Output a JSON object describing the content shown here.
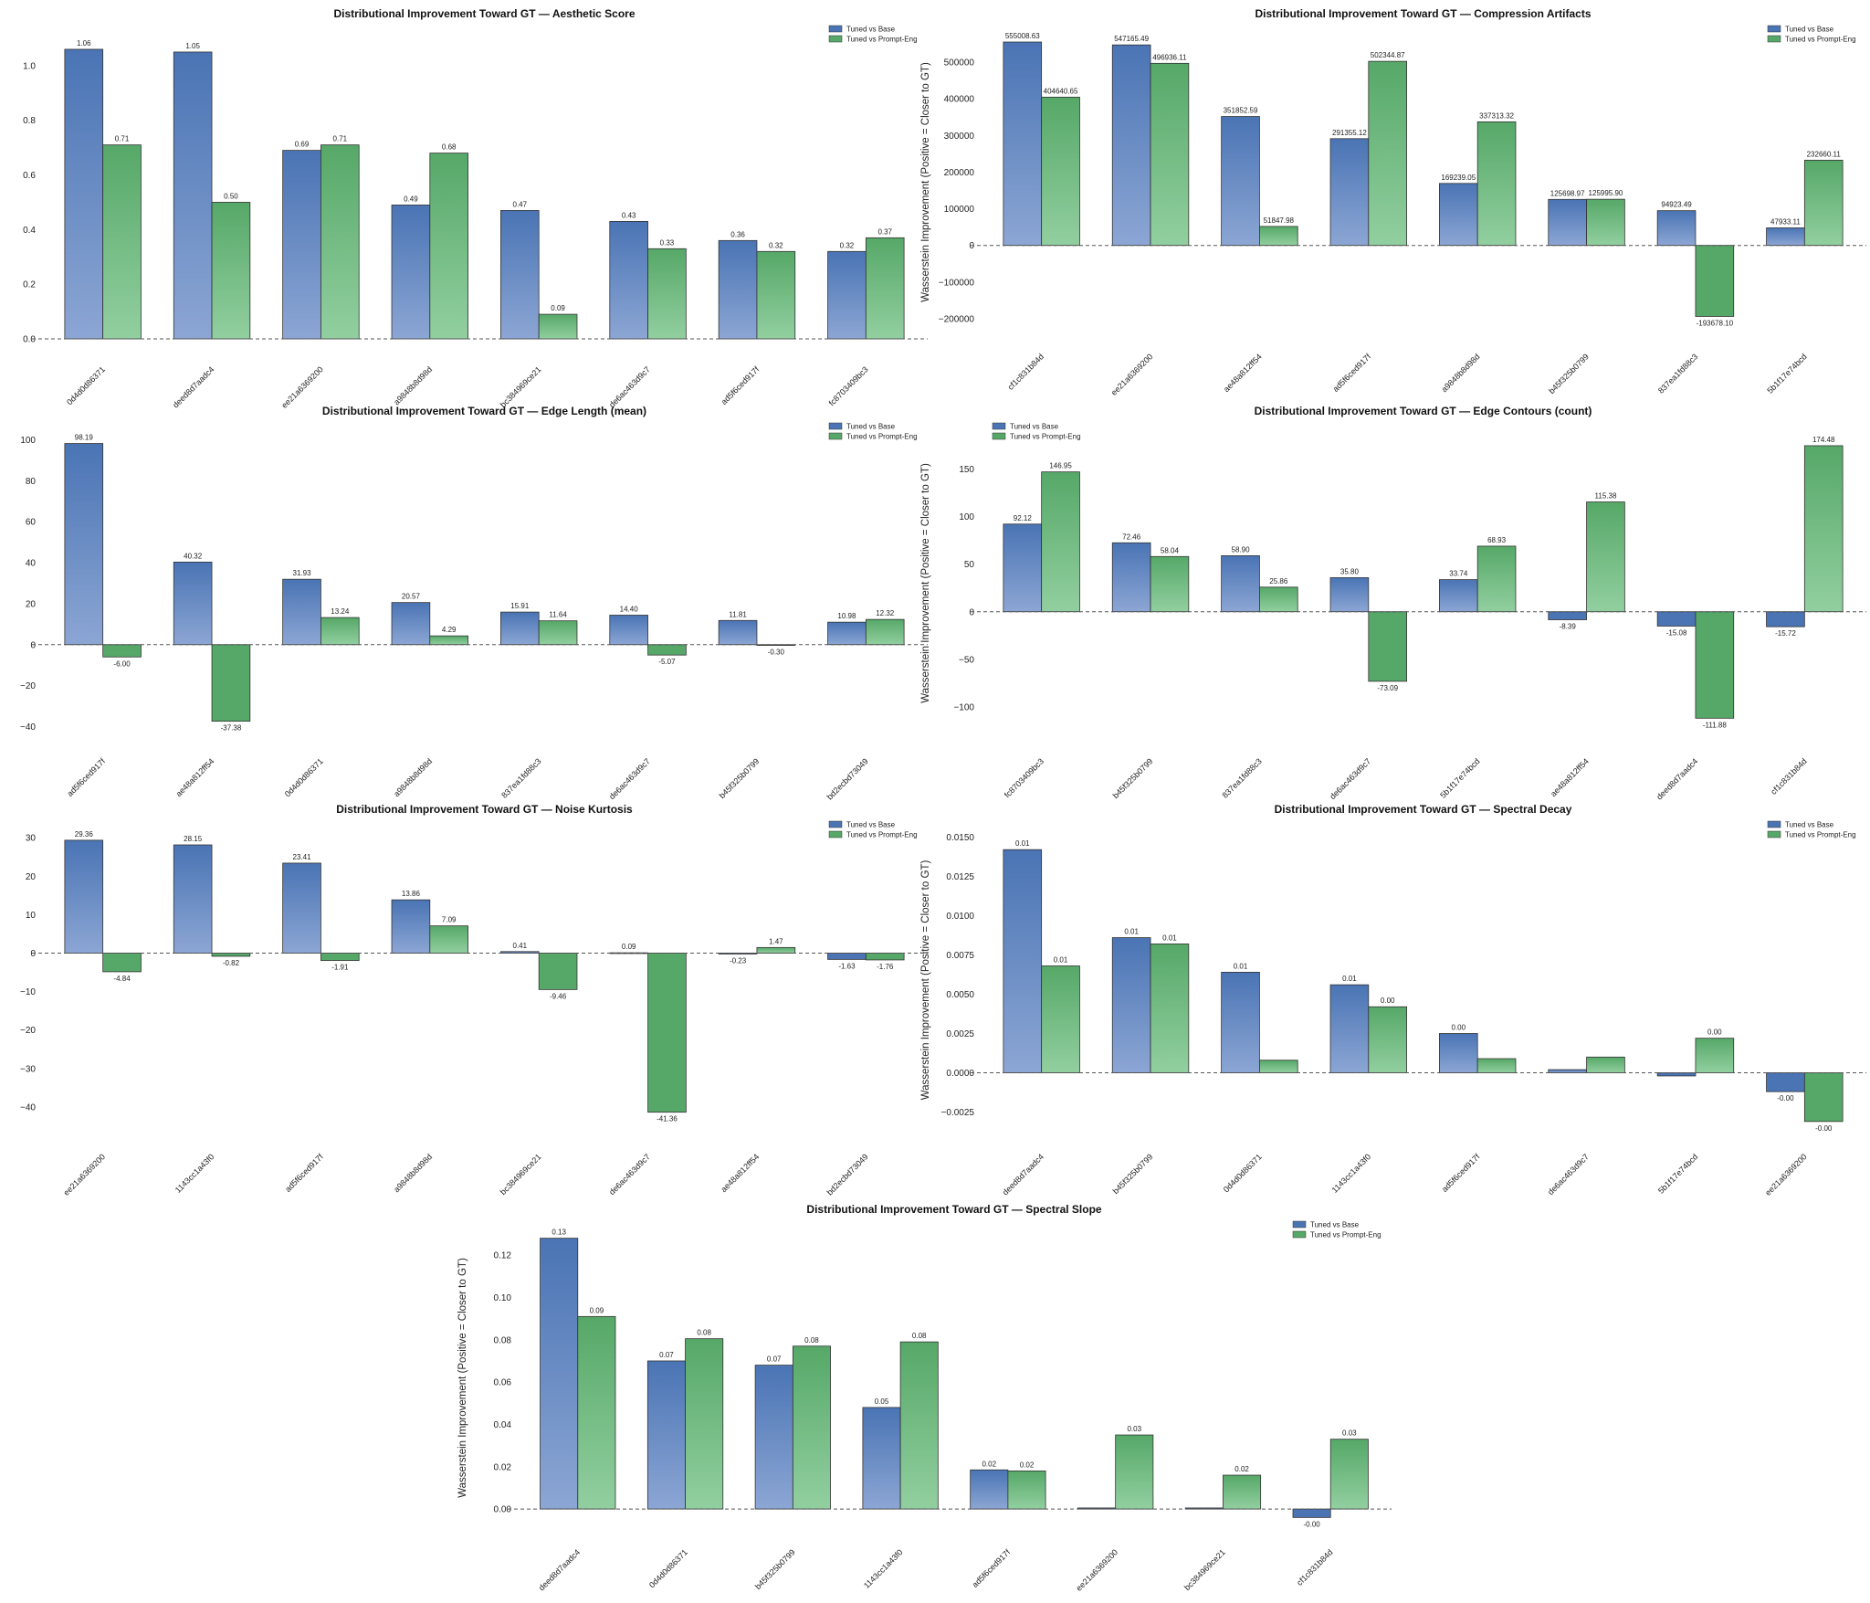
{
  "colors": {
    "tuned_vs_base": "#4a74b4",
    "tuned_vs_prompt_eng": "#56a868",
    "zero_line": "#555555"
  },
  "chart_data": [
    {
      "type": "bar",
      "title": "Distributional Improvement Toward GT — Aesthetic Score",
      "ylabel": "Wasserstein Improvement (Positive = Closer to GT)",
      "ylim": [
        0,
        1.1
      ],
      "yticks": [
        "0.0",
        "0.2",
        "0.4",
        "0.6",
        "0.8",
        "1.0"
      ],
      "ytick_values": [
        0,
        0.2,
        0.4,
        0.6,
        0.8,
        1.0
      ],
      "legend": "top-right",
      "categories": [
        "0d4d0d86371",
        "deed8d7aadc4",
        "ee21a6369200",
        "a9848b8d98d",
        "bc384969ce21",
        "de6ac463d9c7",
        "ad5f6ced917f",
        "fc8703409bc3"
      ],
      "series": [
        {
          "name": "Tuned vs Base",
          "values": [
            1.06,
            1.05,
            0.69,
            0.49,
            0.47,
            0.43,
            0.36,
            0.32
          ],
          "labels": [
            "1.06",
            "1.05",
            "0.69",
            "0.49",
            "0.47",
            "0.43",
            "0.36",
            "0.32"
          ]
        },
        {
          "name": "Tuned vs Prompt-Eng",
          "values": [
            0.71,
            0.5,
            0.71,
            0.68,
            0.09,
            0.33,
            0.32,
            0.37
          ],
          "labels": [
            "0.71",
            "0.50",
            "0.71",
            "0.68",
            "0.09",
            "0.33",
            "0.32",
            "0.37"
          ]
        }
      ]
    },
    {
      "type": "bar",
      "title": "Distributional Improvement Toward GT — Compression Artifacts",
      "ylabel": "Wasserstein Improvement (Positive = Closer to GT)",
      "ylim": [
        -220000,
        565000
      ],
      "yticks": [
        "−200000",
        "−100000",
        "0",
        "100000",
        "200000",
        "300000",
        "400000",
        "500000"
      ],
      "ytick_values": [
        -200000,
        -100000,
        0,
        100000,
        200000,
        300000,
        400000,
        500000
      ],
      "legend": "top-right",
      "categories": [
        "cf1c831b84d",
        "ee21a6369200",
        "ae48a812ff54",
        "ad5f6ced917f",
        "a9848b8d98d",
        "b45f325b0799",
        "837ea1fd88c3",
        "5b1f17e74bcd"
      ],
      "series": [
        {
          "name": "Tuned vs Base",
          "values": [
            555008.63,
            547165.49,
            351852.59,
            291355.12,
            169239.05,
            125698.97,
            94923.49,
            47933.11
          ],
          "labels": [
            "555008.63",
            "547165.49",
            "351852.59",
            "291355.12",
            "169239.05",
            "125698.97",
            "94923.49",
            "47933.11"
          ]
        },
        {
          "name": "Tuned vs Prompt-Eng",
          "values": [
            404640.65,
            496936.11,
            51847.98,
            502344.87,
            337313.32,
            125995.9,
            -193678.1,
            232660.11
          ],
          "labels": [
            "404640.65",
            "496936.11",
            "51847.98",
            "502344.87",
            "337313.32",
            "125995.90",
            "-193678.10",
            "232660.11"
          ]
        }
      ]
    },
    {
      "type": "bar",
      "title": "Distributional Improvement Toward GT — Edge Length (mean)",
      "ylabel": "Wasserstein Improvement (Positive = Closer to GT)",
      "ylim": [
        -42,
        102
      ],
      "yticks": [
        "−40",
        "−20",
        "0",
        "20",
        "40",
        "60",
        "80",
        "100"
      ],
      "ytick_values": [
        -40,
        -20,
        0,
        20,
        40,
        60,
        80,
        100
      ],
      "legend": "top-right",
      "categories": [
        "ad5f6ced917f",
        "ae48a812ff54",
        "0d4d0d86371",
        "a9848b8d98d",
        "837ea1fd88c3",
        "de6ac463d9c7",
        "b45f325b0799",
        "bd2ecbd73049"
      ],
      "series": [
        {
          "name": "Tuned vs Base",
          "values": [
            98.19,
            40.32,
            31.93,
            20.57,
            15.91,
            14.4,
            11.81,
            10.98
          ],
          "labels": [
            "98.19",
            "40.32",
            "31.93",
            "20.57",
            "15.91",
            "14.40",
            "11.81",
            "10.98"
          ]
        },
        {
          "name": "Tuned vs Prompt-Eng",
          "values": [
            -6.0,
            -37.38,
            13.24,
            4.29,
            11.64,
            -5.07,
            -0.3,
            12.32
          ],
          "labels": [
            "-6.00",
            "-37.38",
            "13.24",
            "4.29",
            "11.64",
            "-5.07",
            "-0.30",
            "12.32"
          ]
        }
      ]
    },
    {
      "type": "bar",
      "title": "Distributional Improvement Toward GT — Edge Contours (count)",
      "ylabel": "Wasserstein Improvement (Positive = Closer to GT)",
      "ylim": [
        -125,
        185
      ],
      "yticks": [
        "−100",
        "−50",
        "0",
        "50",
        "100",
        "150"
      ],
      "ytick_values": [
        -100,
        -50,
        0,
        50,
        100,
        150
      ],
      "legend": "top-left",
      "categories": [
        "fc8703409bc3",
        "b45f325b0799",
        "837ea1fd88c3",
        "de6ac463d9c7",
        "5b1f17e74bcd",
        "ae48a812ff54",
        "deed8d7aadc4",
        "cf1c831b84d"
      ],
      "series": [
        {
          "name": "Tuned vs Base",
          "values": [
            92.12,
            72.46,
            58.9,
            35.8,
            33.74,
            -8.39,
            -15.08,
            -15.72
          ],
          "labels": [
            "92.12",
            "72.46",
            "58.90",
            "35.80",
            "33.74",
            "-8.39",
            "-15.08",
            "-15.72"
          ]
        },
        {
          "name": "Tuned vs Prompt-Eng",
          "values": [
            146.95,
            58.04,
            25.86,
            -73.09,
            68.93,
            115.38,
            -111.88,
            174.48
          ],
          "labels": [
            "146.95",
            "58.04",
            "25.86",
            "-73.09",
            "68.93",
            "115.38",
            "-111.88",
            "174.48"
          ]
        }
      ]
    },
    {
      "type": "bar",
      "title": "Distributional Improvement Toward GT — Noise Kurtosis",
      "ylabel": "Wasserstein Improvement (Positive = Closer to GT)",
      "ylim": [
        -45,
        31
      ],
      "yticks": [
        "−40",
        "−30",
        "−20",
        "−10",
        "0",
        "10",
        "20",
        "30"
      ],
      "ytick_values": [
        -40,
        -30,
        -20,
        -10,
        0,
        10,
        20,
        30
      ],
      "legend": "top-right",
      "categories": [
        "ee21a6369200",
        "1143cc1a43f0",
        "ad5f6ced917f",
        "a9848b8d98d",
        "bc384969ce21",
        "de6ac463d9c7",
        "ae48a812ff54",
        "bd2ecbd73049"
      ],
      "series": [
        {
          "name": "Tuned vs Base",
          "values": [
            29.36,
            28.15,
            23.41,
            13.86,
            0.41,
            0.09,
            -0.23,
            -1.63
          ],
          "labels": [
            "29.36",
            "28.15",
            "23.41",
            "13.86",
            "0.41",
            "0.09",
            "-0.23",
            "-1.63"
          ]
        },
        {
          "name": "Tuned vs Prompt-Eng",
          "values": [
            -4.84,
            -0.82,
            -1.91,
            7.09,
            -9.46,
            -41.36,
            1.47,
            -1.76
          ],
          "labels": [
            "-4.84",
            "-0.82",
            "-1.91",
            "7.09",
            "-9.46",
            "-41.36",
            "1.47",
            "-1.76"
          ]
        }
      ]
    },
    {
      "type": "bar",
      "title": "Distributional Improvement Toward GT — Spectral Decay",
      "ylabel": "Wasserstein Improvement (Positive = Closer to GT)",
      "ylim": [
        -0.0034,
        0.0152
      ],
      "yticks": [
        "−0.0025",
        "0.0000",
        "0.0025",
        "0.0050",
        "0.0075",
        "0.0100",
        "0.0125",
        "0.0150"
      ],
      "ytick_values": [
        -0.0025,
        0,
        0.0025,
        0.005,
        0.0075,
        0.01,
        0.0125,
        0.015
      ],
      "legend": "top-right",
      "categories": [
        "deed8d7aadc4",
        "b45f325b0799",
        "0d4d0d86371",
        "1143cc1a43f0",
        "ad5f6ced917f",
        "de6ac463d9c7",
        "5b1f17e74bcd",
        "ee21a6369200"
      ],
      "series": [
        {
          "name": "Tuned vs Base",
          "values": [
            0.0142,
            0.0086,
            0.0064,
            0.0056,
            0.0025,
            0.0002,
            -0.0002,
            -0.0012
          ],
          "labels": [
            "0.01",
            "0.01",
            "0.01",
            "0.01",
            "0.00",
            "",
            "",
            "-0.00"
          ]
        },
        {
          "name": "Tuned vs Prompt-Eng",
          "values": [
            0.0068,
            0.0082,
            0.0008,
            0.0042,
            0.0009,
            0.001,
            0.0022,
            -0.0031
          ],
          "labels": [
            "0.01",
            "0.01",
            "",
            "0.00",
            "",
            "",
            "0.00",
            "-0.00"
          ]
        }
      ]
    },
    {
      "type": "bar",
      "title": "Distributional Improvement Toward GT — Spectral Slope",
      "ylabel": "Wasserstein Improvement (Positive = Closer to GT)",
      "ylim": [
        -0.006,
        0.13
      ],
      "yticks": [
        "0.00",
        "0.02",
        "0.04",
        "0.06",
        "0.08",
        "0.10",
        "0.12"
      ],
      "ytick_values": [
        0,
        0.02,
        0.04,
        0.06,
        0.08,
        0.1,
        0.12
      ],
      "legend": "top-right",
      "categories": [
        "deed8d7aadc4",
        "0d4d0d86371",
        "b45f325b0799",
        "1143cc1a43f0",
        "ad5f6ced917f",
        "ee21a6369200",
        "bc384969ce21",
        "cf1c831b84d"
      ],
      "series": [
        {
          "name": "Tuned vs Base",
          "values": [
            0.128,
            0.07,
            0.068,
            0.048,
            0.0185,
            0.0005,
            0.0005,
            -0.004
          ],
          "labels": [
            "0.13",
            "0.07",
            "0.07",
            "0.05",
            "0.02",
            "",
            "",
            "-0.00"
          ]
        },
        {
          "name": "Tuned vs Prompt-Eng",
          "values": [
            0.091,
            0.0805,
            0.077,
            0.079,
            0.018,
            0.035,
            0.016,
            0.033
          ],
          "labels": [
            "0.09",
            "0.08",
            "0.08",
            "0.08",
            "0.02",
            "0.03",
            "0.02",
            "0.03"
          ]
        }
      ]
    }
  ]
}
